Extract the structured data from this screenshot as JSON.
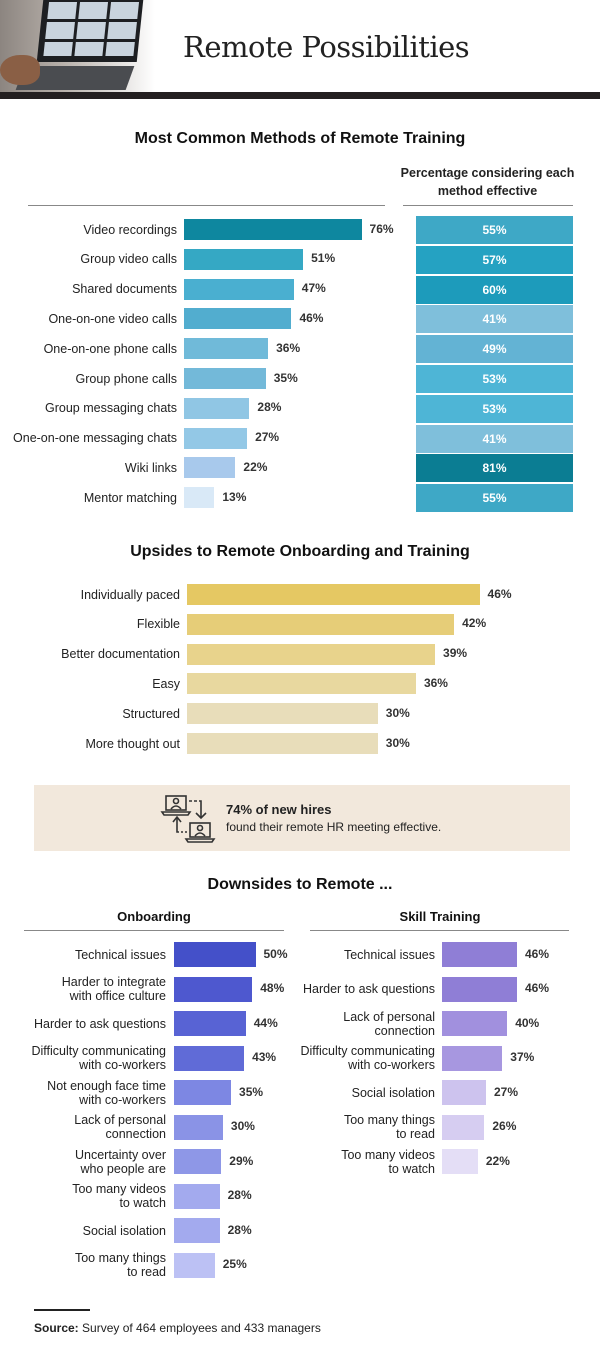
{
  "header": {
    "title": "Remote Possibilities"
  },
  "chart_data": [
    {
      "type": "bar",
      "orientation": "horizontal",
      "title": "Most Common Methods of Remote Training",
      "categories": [
        "Video recordings",
        "Group video calls",
        "Shared documents",
        "One-on-one video calls",
        "One-on-one phone calls",
        "Group phone calls",
        "Group messaging chats",
        "One-on-one messaging chats",
        "Wiki links",
        "Mentor matching"
      ],
      "values": [
        76,
        51,
        47,
        46,
        36,
        35,
        28,
        27,
        22,
        13
      ],
      "value_labels": [
        "76%",
        "51%",
        "47%",
        "46%",
        "36%",
        "35%",
        "28%",
        "27%",
        "22%",
        "13%"
      ],
      "colors": [
        "#0e879f",
        "#35a8c4",
        "#4aafd0",
        "#52adcf",
        "#70bad9",
        "#73b9d9",
        "#90c6e4",
        "#93c8e6",
        "#a8c9ec",
        "#d9e9f7"
      ],
      "unit": "%",
      "xlim": [
        0,
        100
      ],
      "side_table": {
        "header": "Percentage considering each method effective",
        "values": [
          55,
          57,
          60,
          41,
          49,
          53,
          53,
          41,
          81,
          55
        ],
        "value_labels": [
          "55%",
          "57%",
          "60%",
          "41%",
          "49%",
          "53%",
          "53%",
          "41%",
          "81%",
          "55%"
        ],
        "colors": [
          "#3ea8c6",
          "#25a2c2",
          "#1d9bbb",
          "#7fbfdb",
          "#63b3d4",
          "#4eb5d6",
          "#4eb5d6",
          "#7fbfdb",
          "#0b7d93",
          "#3ea8c6"
        ]
      }
    },
    {
      "type": "bar",
      "orientation": "horizontal",
      "title": "Upsides to Remote Onboarding and Training",
      "categories": [
        "Individually paced",
        "Flexible",
        "Better documentation",
        "Easy",
        "Structured",
        "More thought out"
      ],
      "values": [
        46,
        42,
        39,
        36,
        30,
        30
      ],
      "value_labels": [
        "46%",
        "42%",
        "39%",
        "36%",
        "30%",
        "30%"
      ],
      "colors": [
        "#e5c863",
        "#e6cd78",
        "#e8d38c",
        "#e8d89f",
        "#e8ddba",
        "#e8ddba"
      ],
      "unit": "%",
      "xlim": [
        0,
        60
      ]
    },
    {
      "type": "bar",
      "orientation": "horizontal",
      "title": "Downsides to Remote ...",
      "subtitle": "Onboarding",
      "categories": [
        "Technical issues",
        "Harder to integrate with office culture",
        "Harder to ask questions",
        "Difficulty communicating with co-workers",
        "Not enough face time with co-workers",
        "Lack of personal connection",
        "Uncertainty over who people are",
        "Too many videos to watch",
        "Social isolation",
        "Too many things to read"
      ],
      "category_lines": [
        [
          "Technical issues"
        ],
        [
          "Harder to integrate",
          "with office culture"
        ],
        [
          "Harder to ask questions"
        ],
        [
          "Difficulty communicating",
          "with co-workers"
        ],
        [
          "Not enough face time",
          "with co-workers"
        ],
        [
          "Lack of personal",
          "connection"
        ],
        [
          "Uncertainty over",
          "who people are"
        ],
        [
          "Too many videos",
          "to watch"
        ],
        [
          "Social isolation"
        ],
        [
          "Too many things",
          "to read"
        ]
      ],
      "values": [
        50,
        48,
        44,
        43,
        35,
        30,
        29,
        28,
        28,
        25
      ],
      "value_labels": [
        "50%",
        "48%",
        "44%",
        "43%",
        "35%",
        "30%",
        "29%",
        "28%",
        "28%",
        "25%"
      ],
      "colors": [
        "#4450c9",
        "#4e58cf",
        "#5863d4",
        "#606bd7",
        "#7d87e3",
        "#8a93e6",
        "#8e97e7",
        "#a3aaee",
        "#a3aaee",
        "#bcc1f4"
      ],
      "unit": "%",
      "xlim": [
        0,
        60
      ]
    },
    {
      "type": "bar",
      "orientation": "horizontal",
      "title": "Downsides to Remote ...",
      "subtitle": "Skill Training",
      "categories": [
        "Technical issues",
        "Harder to ask questions",
        "Lack of personal connection",
        "Difficulty communicating with co-workers",
        "Social isolation",
        "Too many things to read",
        "Too many videos to watch"
      ],
      "category_lines": [
        [
          "Technical issues"
        ],
        [
          "Harder to ask questions"
        ],
        [
          "Lack of personal",
          "connection"
        ],
        [
          "Difficulty communicating",
          "with co-workers"
        ],
        [
          "Social isolation"
        ],
        [
          "Too many things",
          "to read"
        ],
        [
          "Too many videos",
          "to watch"
        ]
      ],
      "values": [
        46,
        46,
        40,
        37,
        27,
        26,
        22
      ],
      "value_labels": [
        "46%",
        "46%",
        "40%",
        "37%",
        "27%",
        "26%",
        "22%"
      ],
      "colors": [
        "#8f7ed6",
        "#8f7ed6",
        "#a190de",
        "#a797e0",
        "#cdc3ee",
        "#d6cdf1",
        "#e4def6"
      ],
      "unit": "%",
      "xlim": [
        0,
        60
      ]
    }
  ],
  "callout": {
    "icon": "video-call-exchange-icon",
    "headline": "74% of new hires",
    "subtext": "found their remote HR meeting effective."
  },
  "source": {
    "label": "Source:",
    "text": " Survey of 464 employees and 433 managers"
  }
}
